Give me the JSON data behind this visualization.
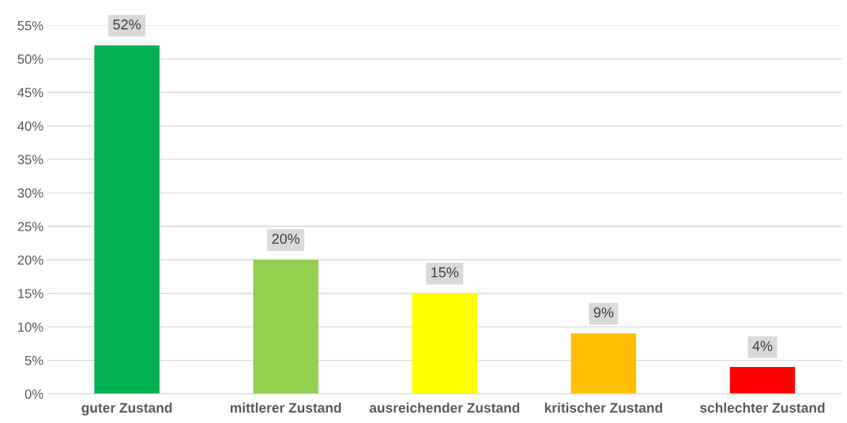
{
  "chart_data": {
    "type": "bar",
    "categories": [
      "guter Zustand",
      "mittlerer Zustand",
      "ausreichender Zustand",
      "kritischer Zustand",
      "schlechter Zustand"
    ],
    "values": [
      52,
      20,
      15,
      9,
      4
    ],
    "colors": [
      "#00b050",
      "#92d050",
      "#ffff00",
      "#ffc000",
      "#ff0000"
    ],
    "value_labels": [
      "52%",
      "20%",
      "15%",
      "9%",
      "4%"
    ],
    "ylim": [
      0,
      55
    ],
    "yticks": [
      {
        "value": 0,
        "label": "0%"
      },
      {
        "value": 5,
        "label": "5%"
      },
      {
        "value": 10,
        "label": "10%"
      },
      {
        "value": 15,
        "label": "15%"
      },
      {
        "value": 20,
        "label": "20%"
      },
      {
        "value": 25,
        "label": "25%"
      },
      {
        "value": 30,
        "label": "30%"
      },
      {
        "value": 35,
        "label": "35%"
      },
      {
        "value": 40,
        "label": "40%"
      },
      {
        "value": 45,
        "label": "45%"
      },
      {
        "value": 50,
        "label": "50%"
      },
      {
        "value": 55,
        "label": "55%"
      }
    ],
    "grid": "y",
    "legend": false
  }
}
